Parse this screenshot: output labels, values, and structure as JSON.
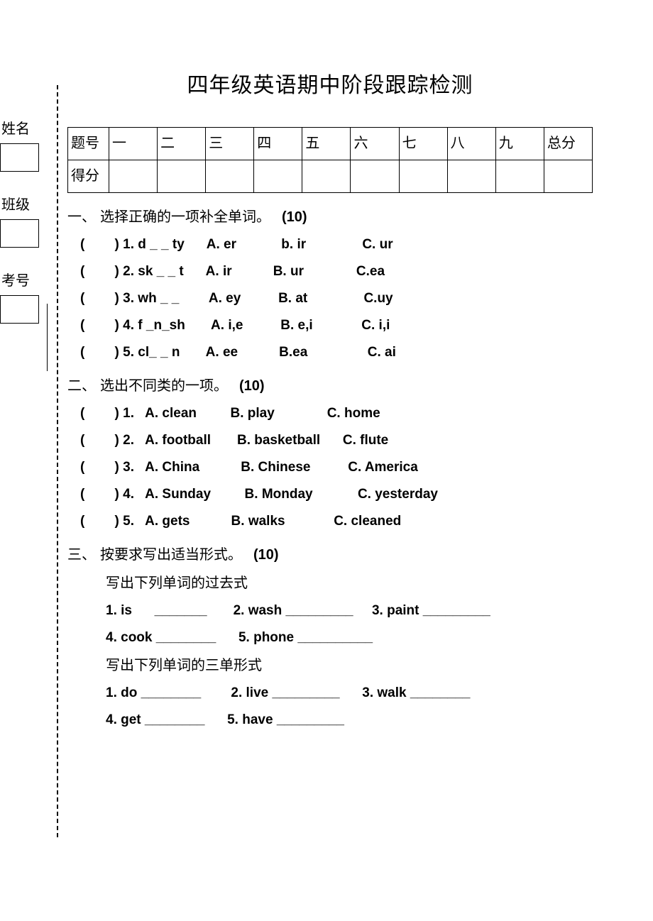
{
  "title": "四年级英语期中阶段跟踪检测",
  "sidebar": {
    "name": "姓名",
    "class": "班级",
    "examno": "考号"
  },
  "table": {
    "row1_label": "题号",
    "row2_label": "得分",
    "cols": [
      "一",
      "二",
      "三",
      "四",
      "五",
      "六",
      "七",
      "八",
      "九",
      "总分"
    ]
  },
  "sections": {
    "s1": {
      "num": "一、",
      "title": "选择正确的一项补全单词。",
      "points": "(10)",
      "items": [
        "(        ) 1. d _ _ ty      A. er            b. ir               C. ur",
        "(        ) 2. sk _ _ t      A. ir           B. ur              C.ea",
        "(        ) 3. wh _ _        A. ey          B. at               C.uy",
        "(        ) 4. f _n_sh       A. i,e          B. e,i             C. i,i",
        "(        ) 5. cl_ _ n       A. ee           B.ea                C. ai"
      ]
    },
    "s2": {
      "num": "二、",
      "title": "选出不同类的一项。",
      "points": "(10)",
      "items": [
        "(        ) 1.   A. clean         B. play              C. home",
        "(        ) 2.   A. football       B. basketball      C. flute",
        "(        ) 3.   A. China           B. Chinese          C. America",
        "(        ) 4.   A. Sunday         B. Monday            C. yesterday",
        "(        ) 5.   A. gets           B. walks             C. cleaned"
      ]
    },
    "s3": {
      "num": "三、",
      "title": "按要求写出适当形式。",
      "points": "(10)",
      "sub1": "写出下列单词的过去式",
      "line1": "1. is      _______       2. wash _________     3. paint _________",
      "line2": "4. cook ________      5. phone __________",
      "sub2": "写出下列单词的三单形式",
      "line3": "1. do ________        2. live _________      3. walk ________",
      "line4": "4. get ________      5. have _________"
    }
  }
}
